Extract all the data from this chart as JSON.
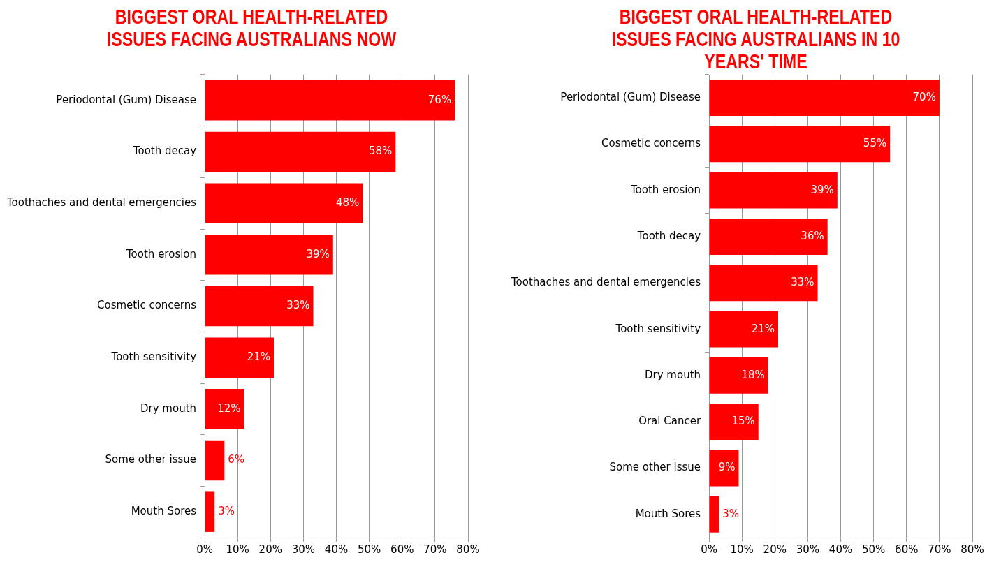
{
  "chart_data": [
    {
      "type": "bar",
      "orientation": "horizontal",
      "title": "BIGGEST ORAL HEALTH-RELATED ISSUES FACING AUSTRALIANS NOW",
      "categories": [
        "Periodontal (Gum) Disease",
        "Tooth decay",
        "Toothaches and dental emergencies",
        "Tooth erosion",
        "Cosmetic concerns",
        "Tooth sensitivity",
        "Dry mouth",
        "Some other issue",
        "Mouth Sores"
      ],
      "values": [
        76,
        58,
        48,
        39,
        33,
        21,
        12,
        6,
        3
      ],
      "value_labels": [
        "76%",
        "58%",
        "48%",
        "39%",
        "33%",
        "21%",
        "12%",
        "6%",
        "3%"
      ],
      "color": "#ff0000",
      "xlim": [
        0,
        80
      ],
      "xticks": [
        {
          "value": 0,
          "label": "0%"
        },
        {
          "value": 10,
          "label": "10%"
        },
        {
          "value": 20,
          "label": "20%"
        },
        {
          "value": 30,
          "label": "30%"
        },
        {
          "value": 40,
          "label": "40%"
        },
        {
          "value": 50,
          "label": "50%"
        },
        {
          "value": 60,
          "label": "60%"
        },
        {
          "value": 70,
          "label": "70%"
        },
        {
          "value": 80,
          "label": "80%"
        }
      ],
      "grid": "x",
      "legend": false
    },
    {
      "type": "bar",
      "orientation": "horizontal",
      "title": "BIGGEST ORAL HEALTH-RELATED ISSUES FACING AUSTRALIANS IN 10 YEARS' TIME",
      "categories": [
        "Periodontal (Gum) Disease",
        "Cosmetic concerns",
        "Tooth erosion",
        "Tooth decay",
        "Toothaches and dental emergencies",
        "Tooth sensitivity",
        "Dry mouth",
        "Oral Cancer",
        "Some other issue",
        "Mouth Sores"
      ],
      "values": [
        70,
        55,
        39,
        36,
        33,
        21,
        18,
        15,
        9,
        3
      ],
      "value_labels": [
        "70%",
        "55%",
        "39%",
        "36%",
        "33%",
        "21%",
        "18%",
        "15%",
        "9%",
        "3%"
      ],
      "color": "#ff0000",
      "xlim": [
        0,
        80
      ],
      "xticks": [
        {
          "value": 0,
          "label": "0%"
        },
        {
          "value": 10,
          "label": "10%"
        },
        {
          "value": 20,
          "label": "20%"
        },
        {
          "value": 30,
          "label": "30%"
        },
        {
          "value": 40,
          "label": "40%"
        },
        {
          "value": 50,
          "label": "50%"
        },
        {
          "value": 60,
          "label": "60%"
        },
        {
          "value": 70,
          "label": "70%"
        },
        {
          "value": 80,
          "label": "80%"
        }
      ],
      "grid": "x",
      "legend": false
    }
  ]
}
